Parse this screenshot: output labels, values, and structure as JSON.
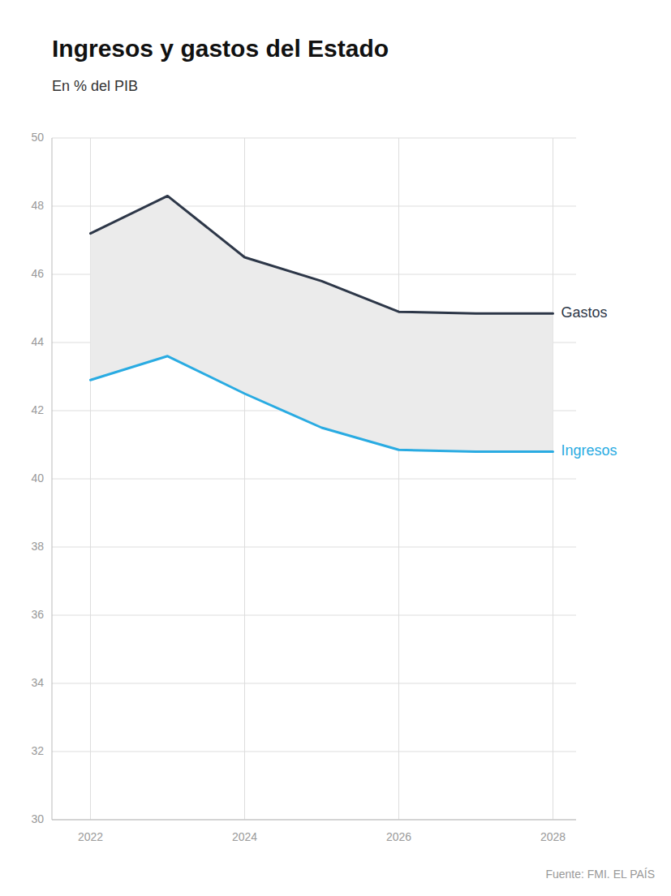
{
  "chart_data": {
    "type": "line",
    "title": "Ingresos y gastos del Estado",
    "subtitle": "En % del PIB",
    "source": "Fuente: FMI. EL PAÍS",
    "x": [
      2022,
      2023,
      2024,
      2025,
      2026,
      2027,
      2028
    ],
    "series": [
      {
        "name": "Gastos",
        "color": "#2d3748",
        "values": [
          47.2,
          48.3,
          46.5,
          45.8,
          44.9,
          44.85,
          44.85
        ]
      },
      {
        "name": "Ingresos",
        "color": "#29abe2",
        "values": [
          42.9,
          43.6,
          42.5,
          41.5,
          40.85,
          40.8,
          40.8
        ]
      }
    ],
    "xlim": [
      2021.5,
      2028.3
    ],
    "ylim": [
      30,
      50
    ],
    "xticks": [
      2022,
      2024,
      2026,
      2028
    ],
    "yticks": [
      30,
      32,
      34,
      36,
      38,
      40,
      42,
      44,
      46,
      48,
      50
    ],
    "grid": true
  }
}
